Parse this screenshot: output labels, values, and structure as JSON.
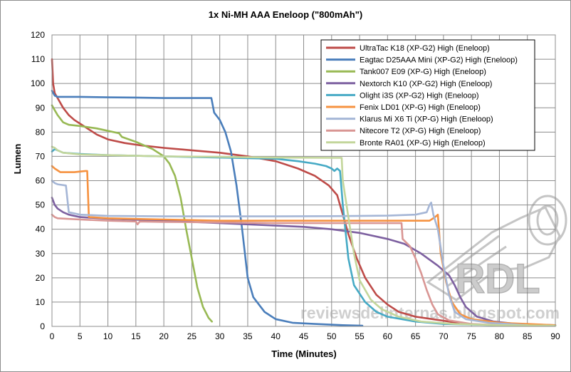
{
  "chart_data": {
    "type": "line",
    "title": "1x Ni-MH AAA Eneloop (\"800mAh\")",
    "xlabel": "Time (Minutes)",
    "ylabel": "Lumen",
    "xlim": [
      0,
      90
    ],
    "ylim": [
      0,
      120
    ],
    "xticks": [
      0,
      5,
      10,
      15,
      20,
      25,
      30,
      35,
      40,
      45,
      50,
      55,
      60,
      65,
      70,
      75,
      80,
      85,
      90
    ],
    "yticks": [
      0,
      10,
      20,
      30,
      40,
      50,
      60,
      70,
      80,
      90,
      100,
      110,
      120
    ],
    "grid": "horizontal and vertical",
    "legend_position": "top-right",
    "series": [
      {
        "name": "UltraTac K18 (XP-G2) High (Eneloop)",
        "color": "#be4b48",
        "points": [
          [
            0,
            110
          ],
          [
            0.2,
            100
          ],
          [
            0.5,
            96
          ],
          [
            1,
            94
          ],
          [
            2,
            90
          ],
          [
            3,
            87
          ],
          [
            4,
            85
          ],
          [
            6,
            82
          ],
          [
            8,
            79
          ],
          [
            10,
            77
          ],
          [
            13,
            75.5
          ],
          [
            16,
            74.5
          ],
          [
            20,
            73.5
          ],
          [
            25,
            72.5
          ],
          [
            30,
            71.5
          ],
          [
            35,
            70
          ],
          [
            40,
            68
          ],
          [
            44,
            65
          ],
          [
            47,
            62
          ],
          [
            49.5,
            58
          ],
          [
            51,
            54
          ],
          [
            52,
            46
          ],
          [
            53,
            38
          ],
          [
            54.5,
            28
          ],
          [
            56,
            20
          ],
          [
            58,
            13
          ],
          [
            60,
            9
          ],
          [
            62,
            6
          ],
          [
            65,
            4
          ],
          [
            68,
            3
          ],
          [
            71,
            2
          ],
          [
            73,
            1
          ]
        ]
      },
      {
        "name": "Eagtac D25AAA Mini (XP-G2) High (Eneloop)",
        "color": "#4a7ebb",
        "points": [
          [
            0,
            97
          ],
          [
            0.5,
            95
          ],
          [
            1,
            94.5
          ],
          [
            5,
            94.5
          ],
          [
            10,
            94.3
          ],
          [
            15,
            94.2
          ],
          [
            20,
            94
          ],
          [
            25,
            94
          ],
          [
            28.5,
            94
          ],
          [
            29,
            88
          ],
          [
            30,
            85
          ],
          [
            31,
            80
          ],
          [
            32,
            72
          ],
          [
            33,
            58
          ],
          [
            34,
            40
          ],
          [
            35,
            20
          ],
          [
            36,
            12
          ],
          [
            38,
            6
          ],
          [
            40,
            3
          ],
          [
            43,
            1.5
          ],
          [
            47,
            1
          ],
          [
            52,
            0.5
          ],
          [
            55.5,
            0.3
          ]
        ]
      },
      {
        "name": "Tank007 E09 (XP-G) High (Eneloop)",
        "color": "#98b954",
        "points": [
          [
            0,
            91
          ],
          [
            0.5,
            89
          ],
          [
            1,
            87
          ],
          [
            2,
            84
          ],
          [
            3,
            83
          ],
          [
            5,
            82.5
          ],
          [
            8,
            81.5
          ],
          [
            11,
            80
          ],
          [
            12,
            79.5
          ],
          [
            12.5,
            78
          ],
          [
            15,
            76
          ],
          [
            18,
            73
          ],
          [
            20,
            70
          ],
          [
            21,
            67
          ],
          [
            22,
            62
          ],
          [
            23,
            53
          ],
          [
            24,
            40
          ],
          [
            25,
            28
          ],
          [
            26,
            16
          ],
          [
            27,
            8
          ],
          [
            28,
            3.5
          ],
          [
            28.6,
            2
          ]
        ]
      },
      {
        "name": "Nextorch K10 (XP-G2) High (Eneloop)",
        "color": "#7d60a0",
        "points": [
          [
            0,
            53
          ],
          [
            0.5,
            50
          ],
          [
            1,
            48.5
          ],
          [
            2,
            47
          ],
          [
            3,
            46
          ],
          [
            5,
            45
          ],
          [
            10,
            44.3
          ],
          [
            20,
            43.5
          ],
          [
            30,
            42.5
          ],
          [
            40,
            41.5
          ],
          [
            45,
            41
          ],
          [
            50,
            40
          ],
          [
            55,
            38.5
          ],
          [
            60,
            36
          ],
          [
            63,
            34
          ],
          [
            66,
            30
          ],
          [
            69,
            25
          ],
          [
            71,
            21
          ],
          [
            72,
            17
          ],
          [
            73,
            12
          ],
          [
            74,
            8
          ],
          [
            76,
            4
          ],
          [
            79,
            2
          ],
          [
            83,
            1
          ],
          [
            90,
            0.5
          ]
        ]
      },
      {
        "name": "Olight i3S (XP-G2) High (Eneloop)",
        "color": "#46aac5",
        "points": [
          [
            0,
            72
          ],
          [
            0.5,
            73
          ],
          [
            1,
            72.5
          ],
          [
            2,
            71.5
          ],
          [
            5,
            71
          ],
          [
            10,
            70.5
          ],
          [
            20,
            70
          ],
          [
            30,
            69.5
          ],
          [
            40,
            69
          ],
          [
            44,
            68
          ],
          [
            47,
            67
          ],
          [
            49,
            66
          ],
          [
            50,
            65
          ],
          [
            50.5,
            64
          ],
          [
            51,
            65
          ],
          [
            51.5,
            64
          ],
          [
            52,
            50
          ],
          [
            53,
            28
          ],
          [
            54,
            17
          ],
          [
            56,
            10
          ],
          [
            58,
            6
          ],
          [
            60,
            4
          ],
          [
            65,
            2
          ],
          [
            70,
            1
          ],
          [
            80,
            0.5
          ],
          [
            90,
            0.3
          ]
        ]
      },
      {
        "name": "Fenix LD01 (XP-G) High (Eneloop)",
        "color": "#f69240",
        "points": [
          [
            0,
            66
          ],
          [
            0.5,
            65
          ],
          [
            1.5,
            63.5
          ],
          [
            4,
            63.5
          ],
          [
            6,
            64
          ],
          [
            6.3,
            64
          ],
          [
            6.6,
            45
          ],
          [
            10,
            44.5
          ],
          [
            20,
            44
          ],
          [
            30,
            43.5
          ],
          [
            40,
            43.5
          ],
          [
            50,
            43.5
          ],
          [
            60,
            43.5
          ],
          [
            65,
            43.5
          ],
          [
            67.5,
            43.5
          ],
          [
            68.5,
            45
          ],
          [
            69,
            46
          ],
          [
            69.5,
            30
          ],
          [
            70.5,
            18
          ],
          [
            71.5,
            10
          ],
          [
            73,
            5
          ],
          [
            75,
            3
          ],
          [
            80,
            1.5
          ],
          [
            90,
            0.5
          ]
        ]
      },
      {
        "name": "Klarus Mi X6 Ti (XP-G) High (Eneloop)",
        "color": "#a5b6d6",
        "points": [
          [
            0,
            60
          ],
          [
            0.5,
            59
          ],
          [
            1,
            58.5
          ],
          [
            2.5,
            58
          ],
          [
            3,
            47
          ],
          [
            5,
            46
          ],
          [
            10,
            45.5
          ],
          [
            20,
            45.3
          ],
          [
            30,
            45.3
          ],
          [
            40,
            45.3
          ],
          [
            50,
            45.4
          ],
          [
            60,
            45.6
          ],
          [
            65,
            46
          ],
          [
            67,
            47
          ],
          [
            67.5,
            50
          ],
          [
            67.8,
            51
          ],
          [
            68.2,
            46
          ],
          [
            69,
            40
          ],
          [
            70,
            25
          ],
          [
            71,
            13
          ],
          [
            72,
            6
          ],
          [
            74,
            3
          ],
          [
            78,
            1.5
          ],
          [
            85,
            0.5
          ]
        ]
      },
      {
        "name": "Nitecore T2 (XP-G) High (Eneloop)",
        "color": "#d99694",
        "points": [
          [
            0,
            46
          ],
          [
            0.5,
            45
          ],
          [
            1,
            44.5
          ],
          [
            5,
            44
          ],
          [
            10,
            43.5
          ],
          [
            15,
            43.2
          ],
          [
            15.3,
            42
          ],
          [
            15.7,
            43.2
          ],
          [
            20,
            43
          ],
          [
            30,
            42.8
          ],
          [
            40,
            42.5
          ],
          [
            50,
            42.5
          ],
          [
            60,
            42.5
          ],
          [
            62.5,
            42.5
          ],
          [
            62.7,
            36
          ],
          [
            64,
            33
          ],
          [
            65,
            28
          ],
          [
            66,
            22
          ],
          [
            67,
            15
          ],
          [
            68,
            9
          ],
          [
            69,
            5
          ],
          [
            71,
            2.5
          ],
          [
            75,
            1
          ],
          [
            80,
            0.5
          ]
        ]
      },
      {
        "name": "Bronte RA01 (XP-G) High (Eneloop)",
        "color": "#c3d69b",
        "points": [
          [
            0,
            74
          ],
          [
            0.5,
            73.5
          ],
          [
            1,
            72.5
          ],
          [
            2,
            71.5
          ],
          [
            5,
            70.8
          ],
          [
            10,
            70.5
          ],
          [
            20,
            70
          ],
          [
            30,
            69.8
          ],
          [
            40,
            69.5
          ],
          [
            50,
            69.4
          ],
          [
            51.8,
            69.4
          ],
          [
            52,
            60
          ],
          [
            53,
            45
          ],
          [
            54,
            30
          ],
          [
            55,
            19
          ],
          [
            57,
            11
          ],
          [
            59,
            7
          ],
          [
            62,
            4
          ],
          [
            66,
            2
          ],
          [
            72,
            1
          ],
          [
            80,
            0.5
          ],
          [
            90,
            0.3
          ]
        ]
      }
    ]
  },
  "watermark": {
    "text": "reviewsdelinternas.blogspot.com",
    "logo_text": "RDL"
  }
}
